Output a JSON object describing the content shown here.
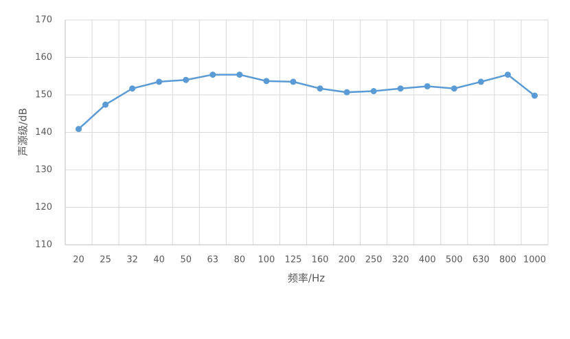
{
  "chart_data": {
    "type": "line",
    "x_label": "频率/Hz",
    "y_label": "声源级/dB",
    "categories": [
      "20",
      "25",
      "32",
      "40",
      "50",
      "63",
      "80",
      "100",
      "125",
      "160",
      "200",
      "250",
      "320",
      "400",
      "500",
      "630",
      "800",
      "1000"
    ],
    "values": [
      140.9,
      147.4,
      151.7,
      153.5,
      154.0,
      155.4,
      155.4,
      153.7,
      153.5,
      151.7,
      150.7,
      151.0,
      151.7,
      152.3,
      151.7,
      153.5,
      155.4,
      149.8
    ],
    "color": "#5b9bd5",
    "ylim": [
      110,
      170
    ],
    "yticks": [
      110,
      120,
      130,
      140,
      150,
      160,
      170
    ],
    "grid": true
  }
}
